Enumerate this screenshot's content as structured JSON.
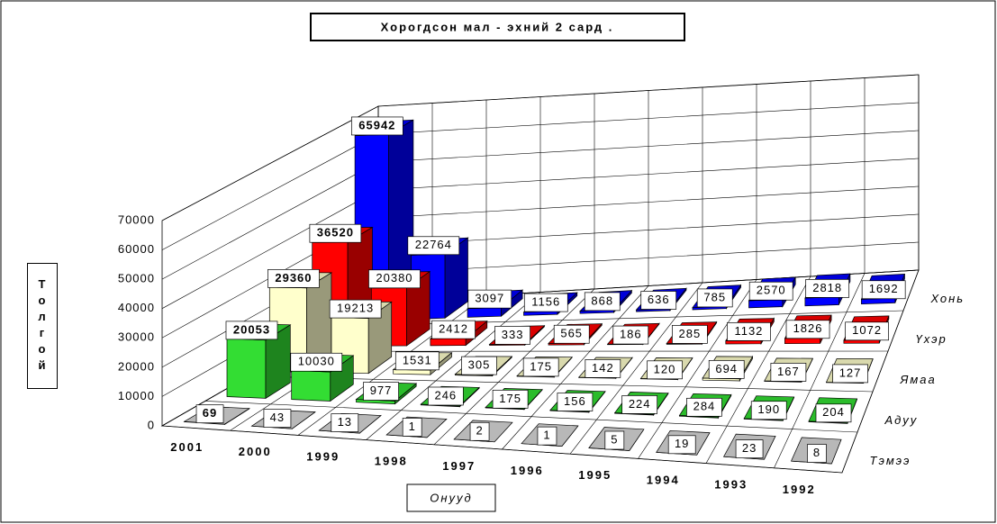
{
  "chart_data": {
    "type": "bar3d",
    "title": "Хорогдсон мал - эхний 2 сард .",
    "y_label": "Толгой",
    "x_label": "Онууд",
    "categories": [
      "2001",
      "2000",
      "1999",
      "1998",
      "1997",
      "1996",
      "1995",
      "1994",
      "1993",
      "1992"
    ],
    "series": [
      {
        "name": "Тэмээ",
        "color": "#d9d9d9",
        "values": [
          69,
          43,
          13,
          1,
          2,
          1,
          5,
          19,
          23,
          8
        ]
      },
      {
        "name": "Адуу",
        "color": "#33dd33",
        "values": [
          20053,
          10030,
          977,
          246,
          175,
          156,
          224,
          284,
          190,
          204
        ]
      },
      {
        "name": "Ямаа",
        "color": "#ffffcc",
        "values": [
          29360,
          19213,
          1531,
          305,
          175,
          142,
          120,
          694,
          167,
          127
        ]
      },
      {
        "name": "Үхэр",
        "color": "#ff0000",
        "values": [
          36520,
          20380,
          2412,
          333,
          565,
          186,
          285,
          1132,
          1826,
          1072
        ]
      },
      {
        "name": "Хонь",
        "color": "#0000ff",
        "values": [
          65942,
          22764,
          3097,
          1156,
          868,
          636,
          785,
          2570,
          2818,
          1692
        ]
      }
    ],
    "ylim": [
      0,
      70000
    ],
    "yticks": [
      0,
      10000,
      20000,
      30000,
      40000,
      50000,
      60000,
      70000
    ],
    "grid": true
  }
}
